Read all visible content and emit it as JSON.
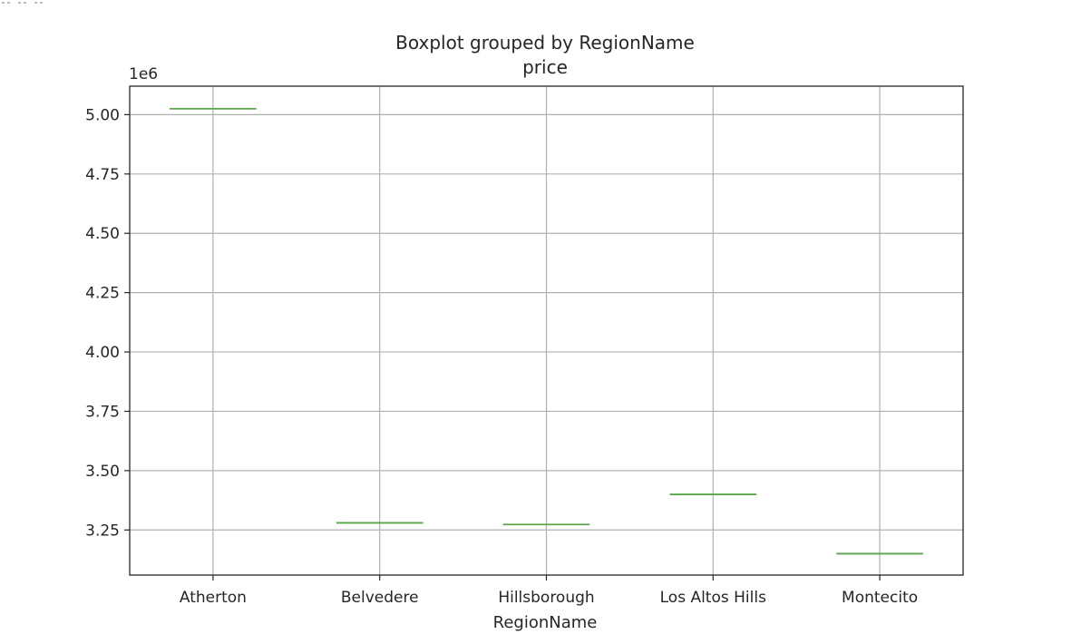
{
  "chart_data": {
    "type": "box",
    "title": "Boxplot grouped by RegionName",
    "subtitle": "price",
    "xlabel": "RegionName",
    "ylabel": "",
    "y_offset_label": "1e6",
    "ylim": [
      3.06,
      5.12
    ],
    "yticks": [
      3.25,
      3.5,
      3.75,
      4.0,
      4.25,
      4.5,
      4.75,
      5.0
    ],
    "ytick_labels": [
      "3.25",
      "3.50",
      "3.75",
      "4.00",
      "4.25",
      "4.50",
      "4.75",
      "5.00"
    ],
    "categories": [
      "Atherton",
      "Belvedere",
      "Hillsborough",
      "Los Altos Hills",
      "Montecito"
    ],
    "values": [
      5.025,
      3.28,
      3.273,
      3.4,
      3.15
    ],
    "grid": true,
    "colors": {
      "median": "#5aa64a",
      "grid": "#b0b0b0",
      "frame": "#262626"
    }
  }
}
